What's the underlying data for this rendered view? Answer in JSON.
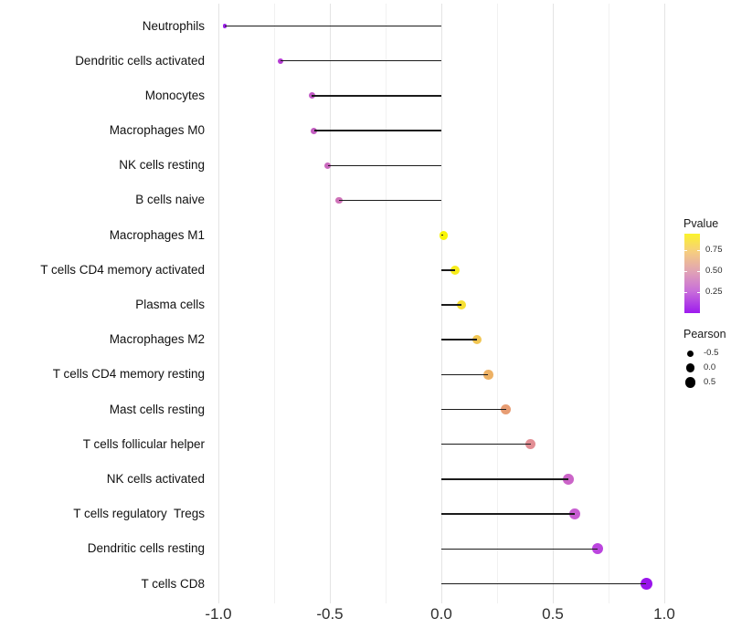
{
  "chart_data": {
    "type": "lollipop",
    "orientation": "horizontal",
    "title": "",
    "xlabel": "",
    "ylabel": "",
    "xlim": [
      -1.07,
      1.03
    ],
    "grid": "major_and_minor",
    "x_ticks": {
      "values": [
        -1.0,
        -0.5,
        0.0,
        0.5,
        1.0
      ],
      "labels": [
        "-1.0",
        "-0.5",
        "0.0",
        "0.5",
        "1.0"
      ],
      "minor_values": [
        -0.75,
        -0.25,
        0.25,
        0.75
      ]
    },
    "categories": [
      "Neutrophils",
      "Dendritic cells activated",
      "Monocytes",
      "Macrophages M0",
      "NK cells resting",
      "B cells naive",
      "Macrophages M1",
      "T cells CD4 memory activated",
      "Plasma cells",
      "Macrophages M2",
      "T cells CD4 memory resting",
      "Mast cells resting",
      "T cells follicular helper",
      "NK cells activated",
      "T cells regulatory  Tregs",
      "Dendritic cells resting",
      "T cells CD8"
    ],
    "series": [
      {
        "name": "Pearson",
        "values": [
          -0.97,
          -0.72,
          -0.58,
          -0.57,
          -0.51,
          -0.46,
          0.01,
          0.06,
          0.09,
          0.16,
          0.21,
          0.29,
          0.4,
          0.57,
          0.6,
          0.7,
          0.92
        ]
      },
      {
        "name": "Pvalue_estimated_from_color",
        "values": [
          0.02,
          0.15,
          0.22,
          0.24,
          0.28,
          0.31,
          0.95,
          0.9,
          0.85,
          0.75,
          0.68,
          0.6,
          0.5,
          0.22,
          0.2,
          0.13,
          0.01
        ]
      }
    ],
    "point_colors": [
      "#9b21e9",
      "#b43bd2",
      "#c159c5",
      "#c35dc1",
      "#ca69be",
      "#cf73b9",
      "#f9f506",
      "#f8ec1b",
      "#f6df33",
      "#f1c653",
      "#edb164",
      "#e79d73",
      "#e28e94",
      "#cb64c8",
      "#c75ed1",
      "#bb45de",
      "#9a14ec"
    ],
    "stem_color": "#1b1b1b",
    "legend": {
      "position": "right",
      "pvalue": {
        "title": "Pvalue",
        "tick_labels": [
          "0.75",
          "0.50",
          "0.25"
        ],
        "tick_values": [
          0.75,
          0.5,
          0.25
        ],
        "bar_range": [
          0.95,
          0.0
        ],
        "gradient_top_to_bottom": [
          "#fbf32b",
          "#f6cd80",
          "#e1a4b4",
          "#c96fd9",
          "#9d1bee"
        ]
      },
      "pearson": {
        "title": "Pearson",
        "item_labels": [
          "-0.5",
          "0.0",
          "0.5"
        ],
        "item_values": [
          -0.5,
          0.0,
          0.5
        ],
        "dot_color": "#000000"
      }
    },
    "colors": {
      "background": "#ffffff",
      "grid_major": "#e4e4e4",
      "grid_minor": "#f1f1f1",
      "axis_text": "#2e2e2e",
      "category_text": "#111111"
    }
  }
}
